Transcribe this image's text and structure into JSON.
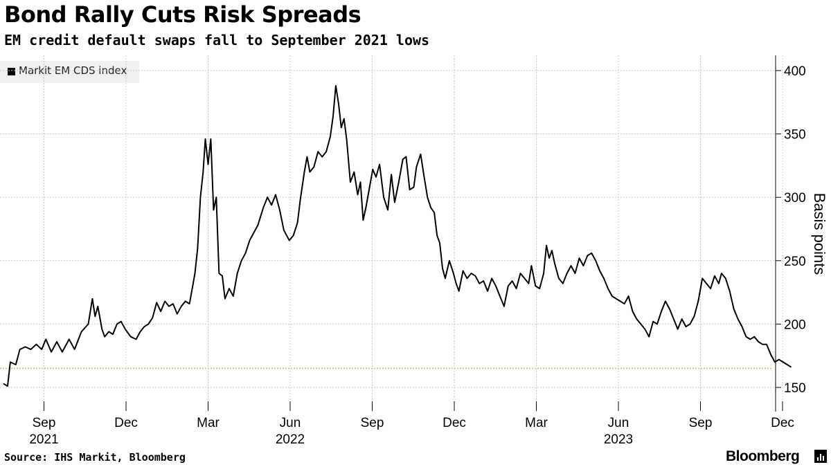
{
  "header": {
    "title": "Bond Rally Cuts Risk Spreads",
    "subtitle": "EM credit default swaps fall to September 2021 lows"
  },
  "footer": {
    "source": "Source: IHS Markit, Bloomberg",
    "brand": "Bloomberg"
  },
  "colors": {
    "line": "#000000",
    "grid": "#c8c8c8",
    "reference": "#a6d96a",
    "legend_bg": "#f0f0f0"
  },
  "chart_data": {
    "type": "line",
    "title": "Bond Rally Cuts Risk Spreads",
    "subtitle": "EM credit default swaps fall to September 2021 lows",
    "ylabel": "Basis points",
    "xlabel": "",
    "ylim": [
      140,
      410
    ],
    "yticks": [
      150,
      200,
      250,
      300,
      350,
      400
    ],
    "y_axis_side": "right",
    "grid": true,
    "legend": {
      "position": "top-left",
      "entries": [
        "Markit EM CDS index"
      ]
    },
    "x_month_range": [
      0,
      36.2
    ],
    "x_ticks": [
      {
        "m": 1,
        "label": "Sep"
      },
      {
        "m": 4,
        "label": "Dec"
      },
      {
        "m": 7,
        "label": "Mar"
      },
      {
        "m": 10,
        "label": "Jun"
      },
      {
        "m": 13,
        "label": "Sep"
      },
      {
        "m": 16,
        "label": "Dec"
      },
      {
        "m": 19,
        "label": "Mar"
      },
      {
        "m": 22,
        "label": "Jun"
      },
      {
        "m": 25,
        "label": "Sep"
      },
      {
        "m": 28,
        "label": "Dec"
      }
    ],
    "year_labels": [
      {
        "m": 1,
        "label": "2021"
      },
      {
        "m": 10,
        "label": "2022"
      },
      {
        "m": 22,
        "label": "2023"
      }
    ],
    "reference_line": {
      "value": 165,
      "style": "dotted"
    },
    "series": [
      {
        "name": "Markit EM CDS index",
        "points": [
          [
            0.0,
            153
          ],
          [
            0.15,
            151
          ],
          [
            0.25,
            170
          ],
          [
            0.45,
            168
          ],
          [
            0.6,
            180
          ],
          [
            0.8,
            182
          ],
          [
            1.0,
            180
          ],
          [
            1.2,
            184
          ],
          [
            1.4,
            180
          ],
          [
            1.55,
            188
          ],
          [
            1.75,
            178
          ],
          [
            1.95,
            186
          ],
          [
            2.15,
            178
          ],
          [
            2.4,
            188
          ],
          [
            2.6,
            180
          ],
          [
            2.85,
            194
          ],
          [
            3.1,
            200
          ],
          [
            3.25,
            220
          ],
          [
            3.35,
            206
          ],
          [
            3.45,
            214
          ],
          [
            3.6,
            196
          ],
          [
            3.7,
            190
          ],
          [
            3.85,
            194
          ],
          [
            4.0,
            192
          ],
          [
            4.15,
            200
          ],
          [
            4.3,
            202
          ],
          [
            4.45,
            196
          ],
          [
            4.65,
            190
          ],
          [
            4.85,
            188
          ],
          [
            5.0,
            194
          ],
          [
            5.15,
            198
          ],
          [
            5.3,
            200
          ],
          [
            5.45,
            205
          ],
          [
            5.6,
            217
          ],
          [
            5.75,
            210
          ],
          [
            5.9,
            218
          ],
          [
            6.05,
            214
          ],
          [
            6.2,
            216
          ],
          [
            6.35,
            208
          ],
          [
            6.5,
            214
          ],
          [
            6.65,
            218
          ],
          [
            6.8,
            216
          ],
          [
            6.9,
            228
          ],
          [
            7.0,
            240
          ],
          [
            7.1,
            260
          ],
          [
            7.2,
            300
          ],
          [
            7.3,
            320
          ],
          [
            7.38,
            346
          ],
          [
            7.48,
            326
          ],
          [
            7.58,
            346
          ],
          [
            7.68,
            290
          ],
          [
            7.78,
            300
          ],
          [
            7.88,
            240
          ],
          [
            8.0,
            238
          ],
          [
            8.1,
            220
          ],
          [
            8.25,
            228
          ],
          [
            8.4,
            222
          ],
          [
            8.55,
            240
          ],
          [
            8.7,
            250
          ],
          [
            8.85,
            256
          ],
          [
            9.0,
            266
          ],
          [
            9.15,
            272
          ],
          [
            9.3,
            278
          ],
          [
            9.5,
            292
          ],
          [
            9.65,
            300
          ],
          [
            9.8,
            294
          ],
          [
            9.95,
            302
          ],
          [
            10.1,
            290
          ],
          [
            10.25,
            274
          ],
          [
            10.45,
            266
          ],
          [
            10.6,
            270
          ],
          [
            10.75,
            280
          ],
          [
            10.85,
            298
          ],
          [
            11.0,
            320
          ],
          [
            11.1,
            332
          ],
          [
            11.2,
            320
          ],
          [
            11.35,
            324
          ],
          [
            11.5,
            336
          ],
          [
            11.65,
            332
          ],
          [
            11.8,
            336
          ],
          [
            11.95,
            348
          ],
          [
            12.05,
            364
          ],
          [
            12.15,
            388
          ],
          [
            12.25,
            374
          ],
          [
            12.35,
            355
          ],
          [
            12.45,
            362
          ],
          [
            12.55,
            345
          ],
          [
            12.68,
            312
          ],
          [
            12.82,
            320
          ],
          [
            12.95,
            302
          ],
          [
            13.05,
            312
          ],
          [
            13.15,
            282
          ],
          [
            13.25,
            292
          ],
          [
            13.4,
            310
          ],
          [
            13.5,
            322
          ],
          [
            13.62,
            316
          ],
          [
            13.75,
            326
          ],
          [
            13.9,
            300
          ],
          [
            14.05,
            290
          ],
          [
            14.18,
            318
          ],
          [
            14.3,
            296
          ],
          [
            14.45,
            312
          ],
          [
            14.6,
            330
          ],
          [
            14.72,
            332
          ],
          [
            14.85,
            306
          ],
          [
            15.0,
            308
          ],
          [
            15.1,
            324
          ],
          [
            15.25,
            334
          ],
          [
            15.38,
            316
          ],
          [
            15.5,
            300
          ],
          [
            15.62,
            292
          ],
          [
            15.75,
            288
          ],
          [
            15.85,
            270
          ],
          [
            15.95,
            264
          ],
          [
            16.05,
            244
          ],
          [
            16.15,
            236
          ],
          [
            16.3,
            250
          ],
          [
            16.45,
            240
          ],
          [
            16.55,
            232
          ],
          [
            16.65,
            226
          ],
          [
            16.8,
            242
          ],
          [
            16.95,
            236
          ],
          [
            17.1,
            240
          ],
          [
            17.25,
            238
          ],
          [
            17.4,
            232
          ],
          [
            17.55,
            234
          ],
          [
            17.7,
            226
          ],
          [
            17.85,
            236
          ],
          [
            18.0,
            230
          ],
          [
            18.15,
            222
          ],
          [
            18.3,
            214
          ],
          [
            18.45,
            230
          ],
          [
            18.6,
            234
          ],
          [
            18.75,
            228
          ],
          [
            18.9,
            240
          ],
          [
            19.05,
            236
          ],
          [
            19.2,
            232
          ],
          [
            19.3,
            246
          ],
          [
            19.45,
            230
          ],
          [
            19.6,
            228
          ],
          [
            19.75,
            240
          ],
          [
            19.85,
            262
          ],
          [
            19.95,
            252
          ],
          [
            20.05,
            258
          ],
          [
            20.15,
            248
          ],
          [
            20.3,
            236
          ],
          [
            20.45,
            232
          ],
          [
            20.6,
            240
          ],
          [
            20.75,
            246
          ],
          [
            20.9,
            240
          ],
          [
            21.05,
            252
          ],
          [
            21.2,
            246
          ],
          [
            21.35,
            254
          ],
          [
            21.5,
            256
          ],
          [
            21.65,
            250
          ],
          [
            21.8,
            242
          ],
          [
            21.95,
            236
          ],
          [
            22.1,
            228
          ],
          [
            22.25,
            222
          ],
          [
            22.4,
            220
          ],
          [
            22.55,
            218
          ],
          [
            22.7,
            216
          ],
          [
            22.85,
            222
          ],
          [
            23.0,
            210
          ],
          [
            23.15,
            204
          ],
          [
            23.3,
            200
          ],
          [
            23.45,
            196
          ],
          [
            23.6,
            190
          ],
          [
            23.75,
            202
          ],
          [
            23.9,
            200
          ],
          [
            24.05,
            210
          ],
          [
            24.2,
            218
          ],
          [
            24.35,
            212
          ],
          [
            24.5,
            204
          ],
          [
            24.65,
            196
          ],
          [
            24.8,
            204
          ],
          [
            24.95,
            198
          ],
          [
            25.1,
            200
          ],
          [
            25.25,
            206
          ],
          [
            25.4,
            218
          ],
          [
            25.55,
            236
          ],
          [
            25.7,
            232
          ],
          [
            25.85,
            228
          ],
          [
            26.0,
            238
          ],
          [
            26.15,
            232
          ],
          [
            26.25,
            240
          ],
          [
            26.4,
            236
          ],
          [
            26.55,
            226
          ],
          [
            26.7,
            212
          ],
          [
            26.85,
            204
          ],
          [
            27.0,
            198
          ],
          [
            27.15,
            190
          ],
          [
            27.3,
            188
          ],
          [
            27.45,
            190
          ],
          [
            27.6,
            186
          ],
          [
            27.75,
            184
          ],
          [
            27.9,
            184
          ],
          [
            28.05,
            176
          ],
          [
            28.2,
            170
          ],
          [
            28.35,
            172
          ],
          [
            28.5,
            170
          ],
          [
            28.65,
            168
          ],
          [
            28.8,
            166
          ]
        ]
      }
    ]
  }
}
